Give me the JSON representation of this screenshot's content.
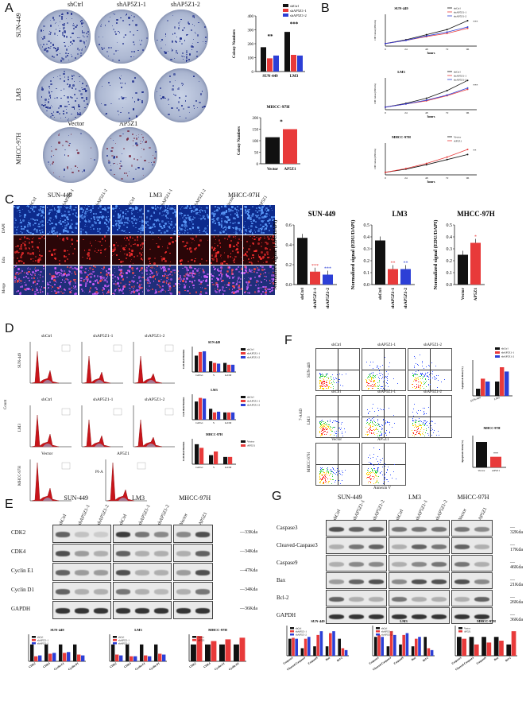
{
  "panels": {
    "A": "A",
    "B": "B",
    "C": "C",
    "D": "D",
    "E": "E",
    "F": "F",
    "G": "G"
  },
  "groups": {
    "shCtrl": "shCtrl",
    "sh1": "shAP5Z1-1",
    "sh2": "shAP5Z1-2",
    "vector": "Vector",
    "ap5z1": "AP5Z1",
    "sun": "SUN-449",
    "lm3": "LM3",
    "mhcc": "MHCC-97H"
  },
  "colors": {
    "ctrl": "#111111",
    "sh1": "#e83a3a",
    "sh2": "#2c3fd6",
    "ap5z1": "#e83a3a"
  },
  "panelA": {
    "ylabel": "Colony Numbers",
    "chart_data": [
      {
        "type": "bar",
        "categories": [
          "SUN-449",
          "LM3"
        ],
        "series": [
          {
            "name": "shCtrl",
            "values": [
              175,
              285
            ]
          },
          {
            "name": "shAP5Z1-1",
            "values": [
              95,
              120
            ]
          },
          {
            "name": "shAP5Z1-2",
            "values": [
              115,
              115
            ]
          }
        ],
        "ylim": [
          0,
          400
        ],
        "yticks": [
          "0",
          "100",
          "200",
          "300",
          "400"
        ],
        "sig": [
          "**",
          "***"
        ]
      },
      {
        "type": "bar",
        "title": "MHCC-97H",
        "categories": [
          "Vector",
          "AP5Z1"
        ],
        "values": [
          115,
          150
        ],
        "ylim": [
          0,
          200
        ],
        "yticks": [
          "0",
          "50",
          "100",
          "150",
          "200"
        ],
        "sig": "*"
      }
    ]
  },
  "panelB": {
    "ylabel": "OD value(450nm)",
    "xlabel": "hours",
    "chart_data": [
      {
        "type": "line",
        "title": "SUN-449",
        "x": [
          0,
          24,
          48,
          72,
          96
        ],
        "series": [
          {
            "name": "shCtrl",
            "values": [
              0.2,
              0.5,
              0.9,
              1.3,
              2.0
            ]
          },
          {
            "name": "shAP5Z1-1",
            "values": [
              0.2,
              0.45,
              0.75,
              1.0,
              1.4
            ]
          },
          {
            "name": "shAP5Z1-2",
            "values": [
              0.2,
              0.45,
              0.8,
              1.1,
              1.5
            ]
          }
        ],
        "sig": "***"
      },
      {
        "type": "line",
        "title": "LM3",
        "x": [
          0,
          24,
          48,
          72,
          96
        ],
        "series": [
          {
            "name": "shCtrl",
            "values": [
              0.2,
              0.5,
              0.9,
              1.5,
              2.3
            ]
          },
          {
            "name": "shAP5Z1-1",
            "values": [
              0.2,
              0.45,
              0.7,
              1.1,
              1.6
            ]
          },
          {
            "name": "shAP5Z1-2",
            "values": [
              0.2,
              0.45,
              0.75,
              1.15,
              1.7
            ]
          }
        ],
        "sig": "***"
      },
      {
        "type": "line",
        "title": "MHCC-97H",
        "x": [
          0,
          24,
          48,
          72,
          96
        ],
        "series": [
          {
            "name": "Vector",
            "values": [
              0.2,
              0.45,
              0.8,
              1.2,
              1.6
            ]
          },
          {
            "name": "AP5Z1",
            "values": [
              0.2,
              0.5,
              0.9,
              1.4,
              2.0
            ]
          }
        ],
        "sig": "**"
      }
    ]
  },
  "panelC": {
    "rows": [
      "DAPI",
      "Edu",
      "Merge"
    ],
    "ylabel": "Normalized signal (EDU/DAPI)",
    "chart_data": [
      {
        "type": "bar",
        "title": "SUN-449",
        "categories": [
          "shCtrl",
          "shAP5Z1-1",
          "shAP5Z1-2"
        ],
        "values": [
          0.47,
          0.13,
          0.1
        ],
        "ylim": [
          0,
          0.6
        ],
        "yticks": [
          "0.0",
          "0.2",
          "0.4",
          "0.6"
        ],
        "sig": [
          "",
          "***",
          "***"
        ]
      },
      {
        "type": "bar",
        "title": "LM3",
        "categories": [
          "shCtrl",
          "shAP5Z1-1",
          "shAP5Z1-2"
        ],
        "values": [
          0.37,
          0.13,
          0.13
        ],
        "ylim": [
          0,
          0.5
        ],
        "yticks": [
          "0.0",
          "0.1",
          "0.2",
          "0.3",
          "0.4",
          "0.5"
        ],
        "sig": [
          "",
          "**",
          "**"
        ]
      },
      {
        "type": "bar",
        "title": "MHCC-97H",
        "categories": [
          "Vector",
          "AP5Z1"
        ],
        "values": [
          0.25,
          0.35
        ],
        "ylim": [
          0,
          0.5
        ],
        "yticks": [
          "0.0",
          "0.1",
          "0.2",
          "0.3",
          "0.4",
          "0.5"
        ],
        "sig": [
          "",
          "*"
        ]
      }
    ]
  },
  "panelD": {
    "xlabel": "PI-A",
    "ylabel": "Count",
    "chart_ylabel": "Cell distribution",
    "chart_data": [
      {
        "type": "bar",
        "title": "SUN-449",
        "categories": [
          "G0/G1",
          "S",
          "G2/M"
        ],
        "series": [
          {
            "name": "shCtrl",
            "values": [
              45,
              30,
              25
            ]
          },
          {
            "name": "shAP5Z1-1",
            "values": [
              55,
              25,
              20
            ]
          },
          {
            "name": "shAP5Z1-2",
            "values": [
              57,
              23,
              20
            ]
          }
        ]
      },
      {
        "type": "bar",
        "title": "LM3",
        "categories": [
          "G0/G1",
          "S",
          "G2/M"
        ],
        "series": [
          {
            "name": "shCtrl",
            "values": [
              50,
              30,
              20
            ]
          },
          {
            "name": "shAP5Z1-1",
            "values": [
              60,
              20,
              20
            ]
          },
          {
            "name": "shAP5Z1-2",
            "values": [
              58,
              22,
              20
            ]
          }
        ]
      },
      {
        "type": "bar",
        "title": "MHCC-97H",
        "categories": [
          "G0/G1",
          "S",
          "G2/M"
        ],
        "series": [
          {
            "name": "Vector",
            "values": [
              55,
              25,
              20
            ]
          },
          {
            "name": "AP5Z1",
            "values": [
              45,
              35,
              20
            ]
          }
        ]
      }
    ]
  },
  "panelE": {
    "proteins": [
      "CDK2",
      "CDK4",
      "Cyclin E1",
      "Cyclin D1",
      "GAPDH"
    ],
    "kda": [
      "33Kda",
      "34Kda",
      "47Kda",
      "34Kda",
      "36Kda"
    ],
    "chart_titles": [
      "SUN-449",
      "LM3",
      "MHCC-97H"
    ],
    "chart_categories": [
      "CDK2",
      "CDK4",
      "Cyclin E1",
      "Cyclin D1"
    ]
  },
  "panelF": {
    "xlabel": "Annexin V",
    "ylabel": "7-AAD",
    "chart_ylabel": "Apoptosis Rate(%)",
    "chart_data": [
      {
        "type": "bar",
        "categories": [
          "SUN-449",
          "LM3"
        ],
        "series": [
          {
            "name": "shCtrl",
            "values": [
              5,
              10
            ]
          },
          {
            "name": "shAP5Z1-1",
            "values": [
              12,
              20
            ]
          },
          {
            "name": "shAP5Z1-2",
            "values": [
              10,
              17
            ]
          }
        ]
      },
      {
        "type": "bar",
        "title": "MHCC-97H",
        "categories": [
          "Vector",
          "AP5Z1"
        ],
        "values": [
          12,
          5
        ],
        "sig": "***"
      }
    ]
  },
  "panelG": {
    "proteins": [
      "Caspase3",
      "Cleaved-Caspase3",
      "Caspase9",
      "Bax",
      "Bcl-2",
      "GAPDH"
    ],
    "kda": [
      "32Kda",
      "17Kda",
      "46Kda",
      "21Kda",
      "26Kda",
      "36Kda"
    ],
    "chart_titles": [
      "SUN-449",
      "LM3",
      "MHCC-97H"
    ],
    "chart_categories": [
      "Caspase3",
      "Cleaved-Caspase3",
      "Caspase9",
      "Bax",
      "Bcl-2"
    ]
  }
}
